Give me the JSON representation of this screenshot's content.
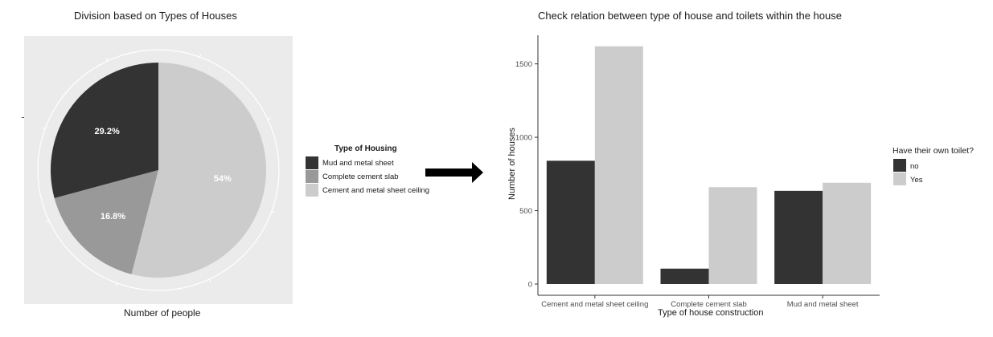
{
  "chart_data": [
    {
      "type": "pie",
      "title": "Division based on Types of Houses",
      "xlabel": "Number of people",
      "legend": {
        "title": "Type of Housing",
        "placement": "right"
      },
      "slices": [
        {
          "label": "Mud and metal sheet",
          "value": 29.2,
          "text": "29.2%",
          "color": "#333333"
        },
        {
          "label": "Complete cement slab",
          "value": 16.8,
          "text": "16.8%",
          "color": "#999999"
        },
        {
          "label": "Cement and metal sheet ceiling",
          "value": 54,
          "text": "54%",
          "color": "#cccccc"
        }
      ],
      "panel_background": "#ebebeb"
    },
    {
      "type": "bar",
      "title": "Check relation between type of house and toilets within the house",
      "xlabel": "Type of house construction",
      "ylabel": "Number of houses",
      "categories": [
        "Cement and metal sheet ceiling",
        "Complete cement slab",
        "Mud and metal sheet"
      ],
      "series": [
        {
          "name": "no",
          "values": [
            840,
            105,
            635
          ],
          "color": "#333333"
        },
        {
          "name": "Yes",
          "values": [
            1620,
            660,
            690
          ],
          "color": "#cccccc"
        }
      ],
      "yticks": [
        0,
        500,
        1000,
        1500
      ],
      "ylim": [
        0,
        1680
      ],
      "grid": false,
      "legend": {
        "title": "Have their own toilet?",
        "placement": "right"
      }
    }
  ],
  "arrow": {
    "color": "#000000"
  }
}
